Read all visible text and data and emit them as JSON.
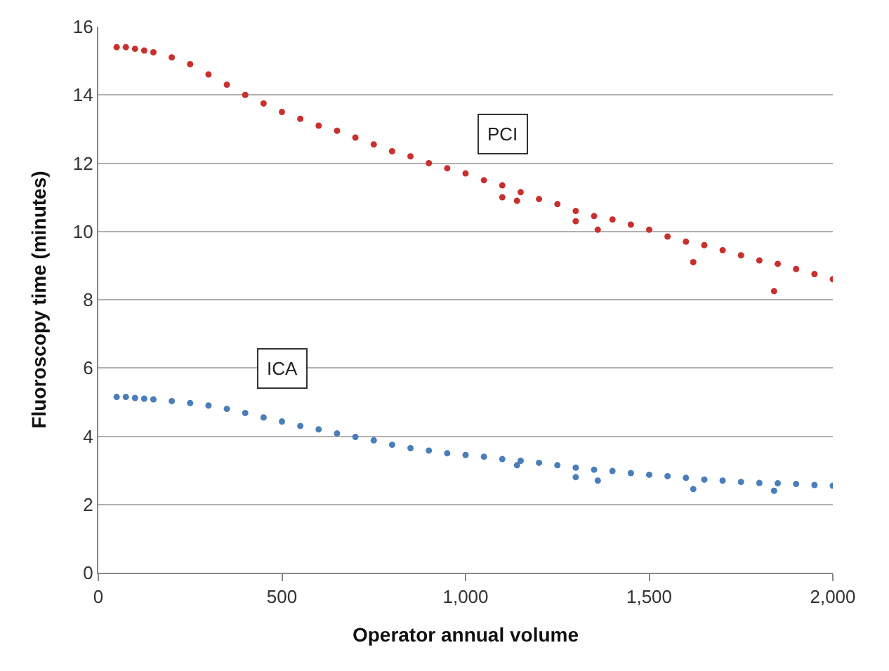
{
  "chart_data": {
    "type": "scatter",
    "xlabel": "Operator annual volume",
    "ylabel": "Fluoroscopy time (minutes)",
    "xlim": [
      0,
      2000
    ],
    "xticks": [
      0,
      500,
      {
        "value": 1000,
        "label": "1,000"
      },
      {
        "value": 1500,
        "label": "1,500"
      },
      {
        "value": 2000,
        "label": "2,000"
      }
    ],
    "ylim": [
      0,
      16
    ],
    "yticks": [
      0,
      2,
      4,
      6,
      8,
      10,
      12,
      14,
      16
    ],
    "grid": "y",
    "legend": false,
    "marker": "circle",
    "series": [
      {
        "name": "PCI",
        "color": "#c8302e",
        "x": [
          50,
          75,
          100,
          125,
          150,
          200,
          250,
          300,
          350,
          400,
          450,
          500,
          550,
          600,
          650,
          700,
          750,
          800,
          850,
          900,
          950,
          1000,
          1050,
          1100,
          1100,
          1140,
          1150,
          1200,
          1250,
          1300,
          1300,
          1350,
          1360,
          1400,
          1450,
          1500,
          1550,
          1600,
          1620,
          1650,
          1700,
          1750,
          1800,
          1840,
          1850,
          1900,
          1950,
          2000
        ],
        "values": [
          15.4,
          15.4,
          15.35,
          15.3,
          15.25,
          15.1,
          14.9,
          14.6,
          14.3,
          14.0,
          13.75,
          13.5,
          13.3,
          13.1,
          12.95,
          12.75,
          12.55,
          12.35,
          12.2,
          12.0,
          11.85,
          11.7,
          11.5,
          11.35,
          11.0,
          10.9,
          11.15,
          10.95,
          10.8,
          10.6,
          10.3,
          10.45,
          10.05,
          10.35,
          10.2,
          10.05,
          9.85,
          9.7,
          9.1,
          9.6,
          9.45,
          9.3,
          9.15,
          8.25,
          9.05,
          8.9,
          8.75,
          8.6
        ]
      },
      {
        "name": "ICA",
        "color": "#4a7ebb",
        "x": [
          50,
          75,
          100,
          125,
          150,
          200,
          250,
          300,
          350,
          400,
          450,
          500,
          550,
          600,
          650,
          700,
          750,
          800,
          850,
          900,
          950,
          1000,
          1050,
          1100,
          1140,
          1150,
          1200,
          1250,
          1300,
          1300,
          1350,
          1360,
          1400,
          1450,
          1500,
          1550,
          1600,
          1620,
          1650,
          1700,
          1750,
          1800,
          1840,
          1850,
          1900,
          1950,
          2000
        ],
        "values": [
          5.15,
          5.15,
          5.12,
          5.1,
          5.08,
          5.03,
          4.97,
          4.9,
          4.8,
          4.68,
          4.55,
          4.43,
          4.3,
          4.2,
          4.08,
          3.98,
          3.88,
          3.75,
          3.65,
          3.58,
          3.5,
          3.45,
          3.4,
          3.33,
          3.15,
          3.28,
          3.22,
          3.15,
          3.08,
          2.8,
          3.02,
          2.7,
          2.98,
          2.92,
          2.87,
          2.83,
          2.78,
          2.45,
          2.73,
          2.7,
          2.66,
          2.63,
          2.4,
          2.62,
          2.6,
          2.57,
          2.55
        ]
      }
    ]
  }
}
